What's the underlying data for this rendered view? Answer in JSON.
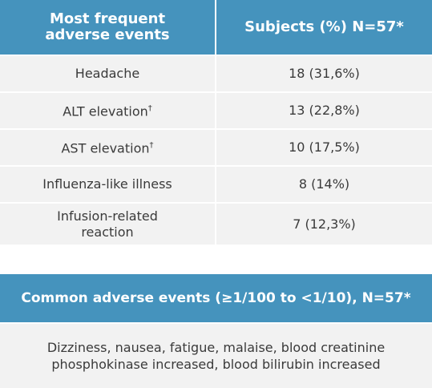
{
  "table": {
    "header": [
      "Most frequent adverse events",
      "Subjects (%) N=57*"
    ],
    "rows": [
      {
        "event": "Headache",
        "subjects": "18 (31,6%)"
      },
      {
        "event": "ALT elevation",
        "note": "†",
        "subjects": "13 (22,8%)"
      },
      {
        "event": "AST elevation",
        "note": "†",
        "subjects": "10 (17,5%)"
      },
      {
        "event": "Influenza-like illness",
        "subjects": "8 (14%)"
      },
      {
        "event": "Infusion-related reaction",
        "subjects": "7 (12,3%)"
      }
    ]
  },
  "common": {
    "header": "Common adverse events (≥1/100 to <1/10), N=57*",
    "body": "Dizziness, nausea, fatigue, malaise, blood creatinine phosphokinase increased, blood bilirubin increased"
  }
}
